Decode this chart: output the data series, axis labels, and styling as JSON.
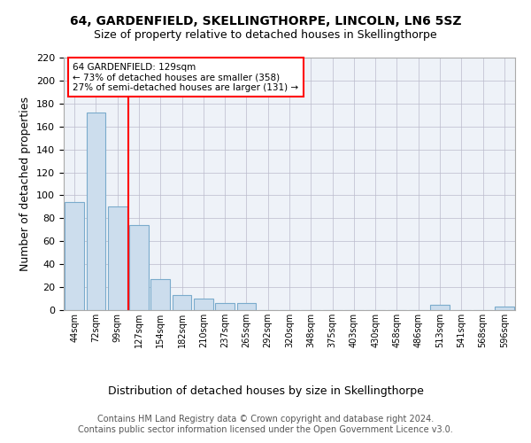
{
  "title1": "64, GARDENFIELD, SKELLINGTHORPE, LINCOLN, LN6 5SZ",
  "title2": "Size of property relative to detached houses in Skellingthorpe",
  "xlabel": "Distribution of detached houses by size in Skellingthorpe",
  "ylabel": "Number of detached properties",
  "categories": [
    "44sqm",
    "72sqm",
    "99sqm",
    "127sqm",
    "154sqm",
    "182sqm",
    "210sqm",
    "237sqm",
    "265sqm",
    "292sqm",
    "320sqm",
    "348sqm",
    "375sqm",
    "403sqm",
    "430sqm",
    "458sqm",
    "486sqm",
    "513sqm",
    "541sqm",
    "568sqm",
    "596sqm"
  ],
  "values": [
    94,
    172,
    90,
    74,
    27,
    13,
    10,
    6,
    6,
    0,
    0,
    0,
    0,
    0,
    0,
    0,
    0,
    5,
    0,
    0,
    3
  ],
  "bar_color": "#ccdded",
  "bar_edge_color": "#7aabcc",
  "red_line_x": 2.5,
  "annotation_text": "64 GARDENFIELD: 129sqm\n← 73% of detached houses are smaller (358)\n27% of semi-detached houses are larger (131) →",
  "ylim_max": 220,
  "yticks": [
    0,
    20,
    40,
    60,
    80,
    100,
    120,
    140,
    160,
    180,
    200,
    220
  ],
  "footer_line1": "Contains HM Land Registry data © Crown copyright and database right 2024.",
  "footer_line2": "Contains public sector information licensed under the Open Government Licence v3.0.",
  "background_color": "#eef2f8",
  "grid_color": "#bbbbcc"
}
